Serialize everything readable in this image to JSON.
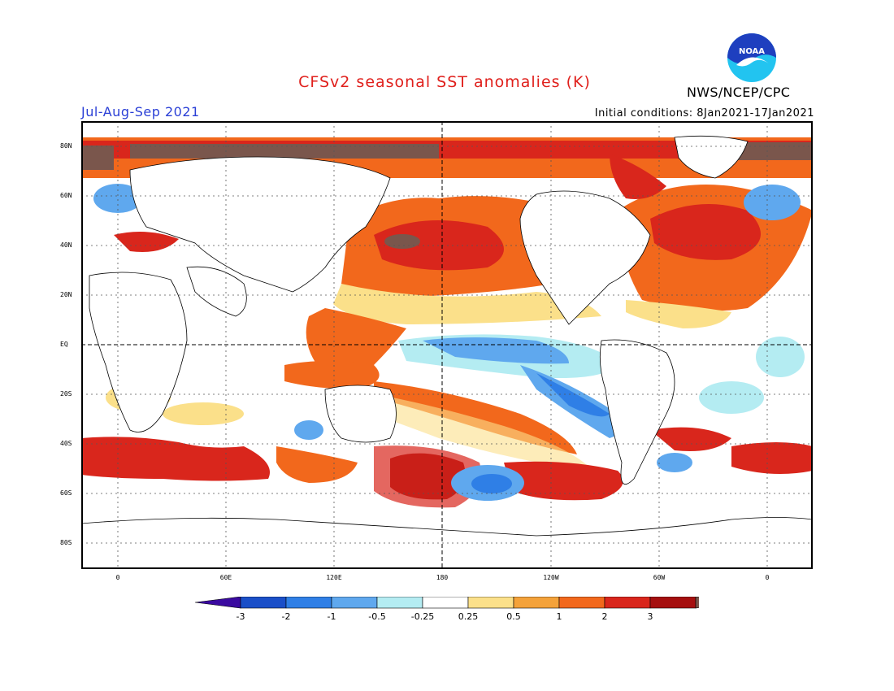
{
  "title": "CFSv2 seasonal SST anomalies (K)",
  "organization": "NWS/NCEP/CPC",
  "logo_text": "NOAA",
  "period": "Jul-Aug-Sep 2021",
  "initial_conditions": "Initial conditions: 8Jan2021-17Jan2021",
  "latitude_labels": [
    "80N",
    "60N",
    "40N",
    "20N",
    "EQ",
    "20S",
    "40S",
    "60S",
    "80S"
  ],
  "longitude_labels": [
    "0",
    "60E",
    "120E",
    "180",
    "120W",
    "60W",
    "0"
  ],
  "colorbar": {
    "labels": [
      "-3",
      "-2",
      "-1",
      "-0.5",
      "-0.25",
      "0.25",
      "0.5",
      "1",
      "2",
      "3"
    ],
    "colors": [
      "#3a0aa0",
      "#1a4fc8",
      "#2f7fe6",
      "#5fa8ee",
      "#b4ecf2",
      "#ffffff",
      "#fbe08a",
      "#f4a23a",
      "#f2681c",
      "#d9261c",
      "#a50f0f",
      "#7a564c"
    ]
  },
  "colors": {
    "title": "#e0201c",
    "period": "#2a3fd6",
    "noaa_blue": "#1e3fbf",
    "noaa_cyan": "#22c4f0"
  }
}
